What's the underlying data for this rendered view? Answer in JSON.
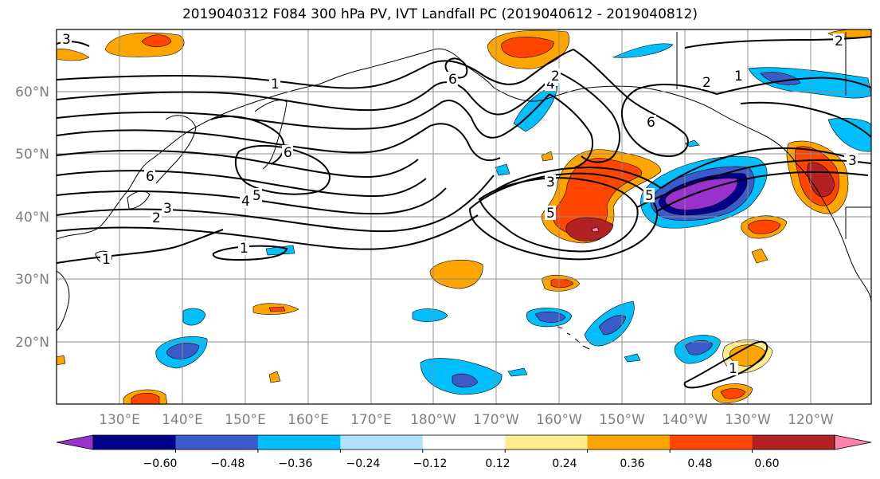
{
  "title": "2019040312 F084 300 hPa PV, IVT Landfall PC (2019040612 - 2019040812)",
  "lat_labels": [
    "60°N",
    "50°N",
    "40°N",
    "30°N",
    "20°N"
  ],
  "lon_labels": [
    "130°E",
    "140°E",
    "150°E",
    "160°E",
    "170°E",
    "180°W",
    "170°W",
    "160°W",
    "150°W",
    "140°W",
    "130°W",
    "120°W"
  ],
  "colorbar": {
    "colors": [
      "#9932cc",
      "#00008b",
      "#3a5bc8",
      "#00bfff",
      "#b0e2ff",
      "#ffffff",
      "#ffec8b",
      "#ffa500",
      "#ff4500",
      "#b22222",
      "#ff82ab"
    ],
    "ticks": [
      "−0.60",
      "−0.48",
      "−0.36",
      "−0.24",
      "−0.12",
      "0.12",
      "0.24",
      "0.36",
      "0.48",
      "0.60"
    ]
  },
  "contour_labels": [
    "3",
    "1",
    "6",
    "6",
    "2",
    "5",
    "4",
    "3",
    "2",
    "1",
    "1",
    "6",
    "3",
    "5",
    "6",
    "5",
    "4",
    "2",
    "2",
    "1",
    "3",
    "1"
  ]
}
